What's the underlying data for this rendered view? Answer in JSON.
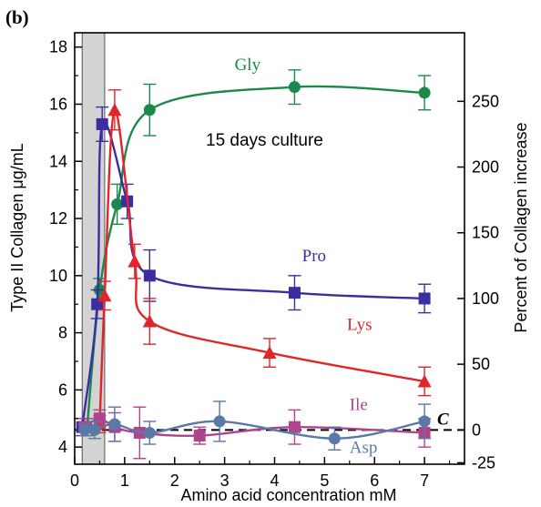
{
  "chart_data": {
    "type": "line",
    "panel_label": "(b)",
    "annotation": "15 days culture",
    "control_label": "C",
    "xlabel": "Amino acid concentration mM",
    "ylabel": "Type II Collagen μg/mL",
    "y2label": "Percent of Collagen increase",
    "xlim": [
      0,
      7.8
    ],
    "ylim": [
      3.4,
      18.5
    ],
    "y2_tick_values": [
      -25,
      0,
      50,
      100,
      150,
      200,
      250
    ],
    "control_level": 4.6,
    "shaded_region_x": [
      0.15,
      0.6
    ],
    "x_ticks": [
      0,
      1,
      2,
      3,
      4,
      5,
      6,
      7
    ],
    "y_ticks": [
      4,
      6,
      8,
      10,
      12,
      14,
      16,
      18
    ],
    "grid": false,
    "colors": {
      "Gly": "#1a8a4a",
      "Pro": "#3a2fa0",
      "Lys": "#e0262a",
      "Ile": "#b0448c",
      "Asp": "#5a78a8",
      "shade": "#d3d3d3"
    },
    "series": [
      {
        "name": "Gly",
        "marker": "circle",
        "points": [
          [
            0.25,
            4.7
          ],
          [
            0.5,
            9.5
          ],
          [
            0.85,
            12.5
          ],
          [
            1.5,
            15.8
          ],
          [
            4.4,
            16.6
          ],
          [
            7.0,
            16.4
          ]
        ],
        "errors": [
          0.3,
          0.4,
          0.7,
          0.9,
          0.6,
          0.6
        ]
      },
      {
        "name": "Pro",
        "marker": "square",
        "points": [
          [
            0.15,
            4.7
          ],
          [
            0.45,
            9.0
          ],
          [
            0.55,
            15.3
          ],
          [
            1.05,
            12.6
          ],
          [
            1.5,
            10.0
          ],
          [
            4.4,
            9.4
          ],
          [
            7.0,
            9.2
          ]
        ],
        "errors": [
          0.3,
          0.5,
          0.6,
          0.6,
          0.9,
          0.6,
          0.5
        ]
      },
      {
        "name": "Lys",
        "marker": "triangle",
        "points": [
          [
            0.5,
            4.8
          ],
          [
            0.6,
            9.3
          ],
          [
            0.8,
            15.8
          ],
          [
            1.2,
            10.5
          ],
          [
            1.5,
            8.4
          ],
          [
            3.9,
            7.3
          ],
          [
            7.0,
            6.3
          ]
        ],
        "errors": [
          0.3,
          0.5,
          0.7,
          0.6,
          0.8,
          0.5,
          0.5
        ]
      },
      {
        "name": "Ile",
        "marker": "square",
        "points": [
          [
            0.2,
            4.7
          ],
          [
            0.5,
            5.0
          ],
          [
            0.8,
            4.7
          ],
          [
            1.3,
            4.5
          ],
          [
            2.5,
            4.4
          ],
          [
            4.4,
            4.7
          ],
          [
            7.0,
            4.5
          ]
        ],
        "errors": [
          0.3,
          0.3,
          0.5,
          0.9,
          0.3,
          0.6,
          0.5
        ]
      },
      {
        "name": "Asp",
        "marker": "circle",
        "points": [
          [
            0.2,
            4.6
          ],
          [
            0.4,
            4.6
          ],
          [
            0.8,
            4.8
          ],
          [
            1.5,
            4.5
          ],
          [
            2.9,
            4.9
          ],
          [
            5.2,
            4.3
          ],
          [
            7.0,
            4.9
          ]
        ],
        "errors": [
          0.2,
          0.3,
          0.6,
          0.4,
          0.7,
          0.4,
          0.6
        ]
      }
    ],
    "curve_label_positions": {
      "Gly": [
        3.2,
        17.2
      ],
      "Pro": [
        4.55,
        10.5
      ],
      "Lys": [
        5.45,
        8.1
      ],
      "Ile": [
        5.5,
        5.3
      ],
      "Asp": [
        5.5,
        3.8
      ]
    }
  }
}
